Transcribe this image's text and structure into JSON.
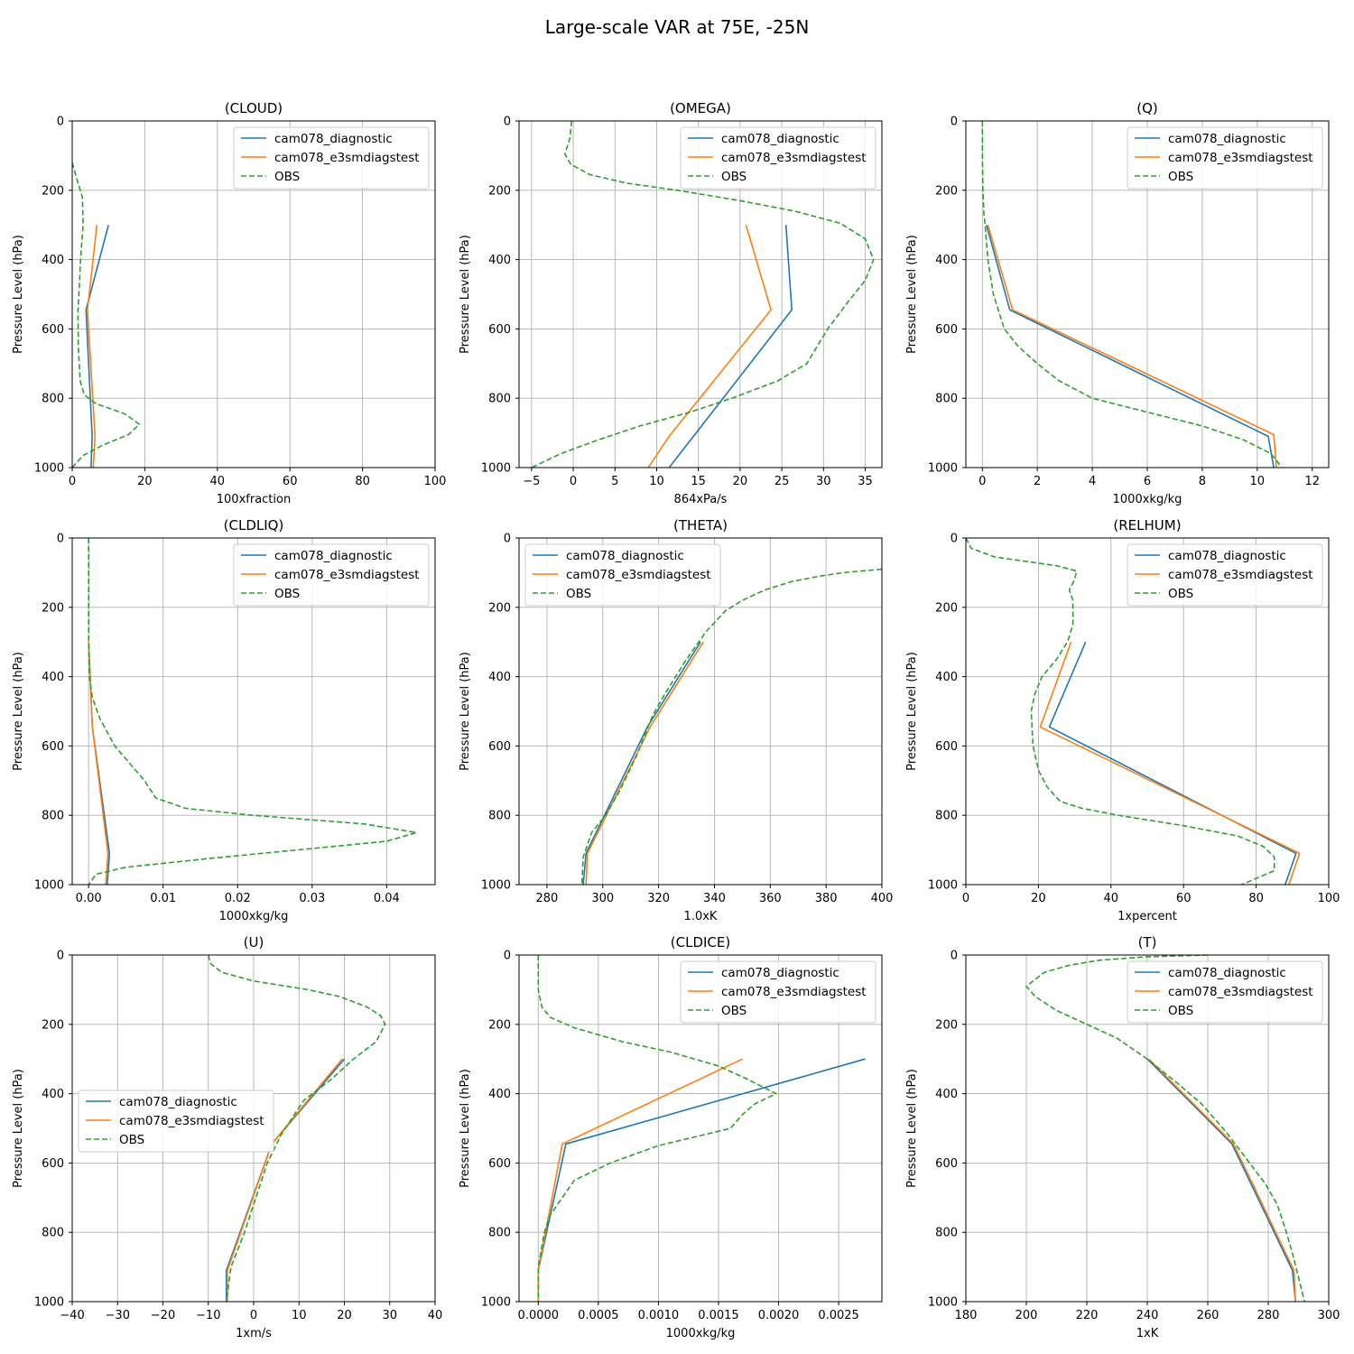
{
  "figure": {
    "title": "Large-scale VAR at 75E, -25N"
  },
  "colors": {
    "cam078_diagnostic": "#1f77b4",
    "cam078_e3smdiagstest": "#ff7f0e",
    "OBS": "#2ca02c"
  },
  "chart_data": [
    {
      "type": "line",
      "title": "(CLOUD)",
      "xlabel": "100xfraction",
      "ylabel": "Pressure Level (hPa)",
      "xlim": [
        0,
        100
      ],
      "ylim": [
        1000,
        0
      ],
      "xticks": [
        0,
        20,
        40,
        60,
        80,
        100
      ],
      "xtick_labels": [
        "0",
        "20",
        "40",
        "60",
        "80",
        "100"
      ],
      "yticks": [
        0,
        200,
        400,
        600,
        800,
        1000
      ],
      "grid": true,
      "legend": "upper right",
      "series": [
        {
          "name": "cam078_diagnostic",
          "style": "solid",
          "x": [
            10,
            3.8,
            5.5,
            5.2
          ],
          "y": [
            300,
            545,
            910,
            1000
          ]
        },
        {
          "name": "cam078_e3smdiagstest",
          "style": "solid",
          "x": [
            6.8,
            4.2,
            6.3,
            5.8
          ],
          "y": [
            300,
            545,
            910,
            1000
          ]
        },
        {
          "name": "OBS",
          "style": "dashed",
          "x": [
            0,
            1.5,
            2.8,
            3.0,
            2.3,
            2.0,
            1.6,
            1.7,
            2.2,
            3.3,
            6.5,
            14.5,
            18.5,
            15.5,
            8.5,
            3.0,
            0
          ],
          "y": [
            120,
            175,
            220,
            300,
            400,
            470,
            550,
            650,
            750,
            790,
            815,
            845,
            875,
            905,
            935,
            965,
            1000
          ]
        }
      ]
    },
    {
      "type": "line",
      "title": "(OMEGA)",
      "xlabel": "864xPa/s",
      "ylabel": "Pressure Level (hPa)",
      "xlim": [
        -6.5,
        37
      ],
      "ylim": [
        1000,
        0
      ],
      "xticks": [
        -5,
        0,
        5,
        10,
        15,
        20,
        25,
        30,
        35
      ],
      "xtick_labels": [
        "−5",
        "0",
        "5",
        "10",
        "15",
        "20",
        "25",
        "30",
        "35"
      ],
      "yticks": [
        0,
        200,
        400,
        600,
        800,
        1000
      ],
      "grid": true,
      "legend": "upper right",
      "series": [
        {
          "name": "cam078_diagnostic",
          "style": "solid",
          "x": [
            25.5,
            26.2,
            11.5
          ],
          "y": [
            300,
            545,
            1000
          ]
        },
        {
          "name": "cam078_e3smdiagstest",
          "style": "solid",
          "x": [
            20.7,
            23.7,
            11.5,
            9.0
          ],
          "y": [
            300,
            545,
            910,
            1000
          ]
        },
        {
          "name": "OBS",
          "style": "dashed",
          "x": [
            -0.2,
            -0.4,
            -1.0,
            -0.3,
            2.0,
            6.5,
            12.5,
            20.0,
            26.5,
            32.0,
            35.0,
            36.0,
            35.0,
            33.0,
            30.5,
            28.0,
            24.5,
            19.0,
            14.0,
            8.0,
            3.0,
            -1.5,
            -5.0
          ],
          "y": [
            0,
            50,
            95,
            125,
            155,
            180,
            200,
            230,
            260,
            295,
            340,
            400,
            460,
            520,
            600,
            700,
            750,
            800,
            840,
            880,
            920,
            960,
            1000
          ]
        }
      ]
    },
    {
      "type": "line",
      "title": "(Q)",
      "xlabel": "1000xkg/kg",
      "ylabel": "Pressure Level (hPa)",
      "xlim": [
        -0.6,
        12.6
      ],
      "ylim": [
        1000,
        0
      ],
      "xticks": [
        0,
        2,
        4,
        6,
        8,
        10,
        12
      ],
      "xtick_labels": [
        "0",
        "2",
        "4",
        "6",
        "8",
        "10",
        "12"
      ],
      "yticks": [
        0,
        200,
        400,
        600,
        800,
        1000
      ],
      "grid": true,
      "legend": "upper right",
      "series": [
        {
          "name": "cam078_diagnostic",
          "style": "solid",
          "x": [
            0.15,
            1.0,
            10.4,
            10.6
          ],
          "y": [
            300,
            545,
            910,
            1000
          ]
        },
        {
          "name": "cam078_e3smdiagstest",
          "style": "solid",
          "x": [
            0.2,
            1.1,
            10.6,
            10.7
          ],
          "y": [
            300,
            545,
            905,
            1000
          ]
        },
        {
          "name": "OBS",
          "style": "dashed",
          "x": [
            0,
            0,
            0.02,
            0.05,
            0.1,
            0.2,
            0.4,
            0.8,
            1.3,
            2.0,
            2.8,
            4.0,
            6.0,
            8.0,
            9.5,
            10.5,
            10.9
          ],
          "y": [
            0,
            100,
            200,
            260,
            300,
            400,
            500,
            600,
            650,
            700,
            750,
            800,
            840,
            880,
            920,
            960,
            1000
          ]
        }
      ]
    },
    {
      "type": "line",
      "title": "(CLDLIQ)",
      "xlabel": "1000xkg/kg",
      "ylabel": "Pressure Level (hPa)",
      "xlim": [
        -0.0022,
        0.0465
      ],
      "ylim": [
        1000,
        0
      ],
      "xticks": [
        0,
        0.01,
        0.02,
        0.03,
        0.04
      ],
      "xtick_labels": [
        "0.00",
        "0.01",
        "0.02",
        "0.03",
        "0.04"
      ],
      "yticks": [
        0,
        200,
        400,
        600,
        800,
        1000
      ],
      "grid": true,
      "legend": "upper right",
      "series": [
        {
          "name": "cam078_diagnostic",
          "style": "solid",
          "x": [
            0,
            0.0005,
            0.0028,
            0.0025
          ],
          "y": [
            300,
            545,
            910,
            1000
          ]
        },
        {
          "name": "cam078_e3smdiagstest",
          "style": "solid",
          "x": [
            0,
            0.0005,
            0.0026,
            0.0023
          ],
          "y": [
            300,
            545,
            910,
            1000
          ]
        },
        {
          "name": "OBS",
          "style": "dashed",
          "x": [
            0,
            0,
            0,
            0.0001,
            0.0005,
            0.0015,
            0.0035,
            0.0055,
            0.0075,
            0.009,
            0.013,
            0.022,
            0.037,
            0.044,
            0.04,
            0.016,
            0.005,
            0.001,
            0
          ],
          "y": [
            0,
            200,
            300,
            400,
            460,
            520,
            600,
            650,
            700,
            750,
            780,
            800,
            825,
            850,
            875,
            925,
            950,
            970,
            1000
          ]
        }
      ]
    },
    {
      "type": "line",
      "title": "(THETA)",
      "xlabel": "1.0xK",
      "ylabel": "Pressure Level (hPa)",
      "xlim": [
        270,
        400
      ],
      "ylim": [
        1000,
        0
      ],
      "xticks": [
        280,
        300,
        320,
        340,
        360,
        380,
        400
      ],
      "xtick_labels": [
        "280",
        "300",
        "320",
        "340",
        "360",
        "380",
        "400"
      ],
      "yticks": [
        0,
        200,
        400,
        600,
        800,
        1000
      ],
      "grid": true,
      "legend": "upper left",
      "series": [
        {
          "name": "cam078_diagnostic",
          "style": "solid",
          "x": [
            335,
            316,
            294,
            293
          ],
          "y": [
            300,
            545,
            910,
            1000
          ]
        },
        {
          "name": "cam078_e3smdiagstest",
          "style": "solid",
          "x": [
            336,
            317,
            294.5,
            294
          ],
          "y": [
            300,
            545,
            910,
            1000
          ]
        },
        {
          "name": "OBS",
          "style": "dashed",
          "x": [
            400,
            386,
            378,
            368,
            358,
            350,
            344,
            337,
            330,
            323,
            318,
            312,
            306,
            301,
            296,
            293,
            292.5
          ],
          "y": [
            90,
            100,
            110,
            125,
            150,
            180,
            210,
            270,
            350,
            440,
            510,
            630,
            730,
            800,
            850,
            920,
            1000
          ]
        }
      ]
    },
    {
      "type": "line",
      "title": "(RELHUM)",
      "xlabel": "1xpercent",
      "ylabel": "Pressure Level (hPa)",
      "xlim": [
        0,
        100
      ],
      "ylim": [
        1000,
        0
      ],
      "xticks": [
        0,
        20,
        40,
        60,
        80,
        100
      ],
      "xtick_labels": [
        "0",
        "20",
        "40",
        "60",
        "80",
        "100"
      ],
      "yticks": [
        0,
        200,
        400,
        600,
        800,
        1000
      ],
      "grid": true,
      "legend": "upper right",
      "series": [
        {
          "name": "cam078_diagnostic",
          "style": "solid",
          "x": [
            33,
            23,
            91,
            88
          ],
          "y": [
            300,
            545,
            910,
            1000
          ]
        },
        {
          "name": "cam078_e3smdiagstest",
          "style": "solid",
          "x": [
            29,
            20.5,
            92,
            89
          ],
          "y": [
            300,
            545,
            910,
            1000
          ]
        },
        {
          "name": "OBS",
          "style": "dashed",
          "x": [
            0,
            1.5,
            8,
            25,
            30.5,
            30,
            28.5,
            29.5,
            29.5,
            28,
            25,
            21,
            19,
            18,
            18.5,
            20,
            22.5,
            26,
            32,
            42,
            60,
            75,
            82,
            85,
            85,
            76
          ],
          "y": [
            0,
            30,
            55,
            80,
            95,
            120,
            150,
            180,
            250,
            300,
            350,
            400,
            450,
            500,
            600,
            670,
            720,
            760,
            780,
            800,
            830,
            860,
            890,
            920,
            960,
            1000
          ]
        }
      ]
    },
    {
      "type": "line",
      "title": "(U)",
      "xlabel": "1xm/s",
      "ylabel": "Pressure Level (hPa)",
      "xlim": [
        -40,
        40
      ],
      "ylim": [
        1000,
        0
      ],
      "xticks": [
        -40,
        -30,
        -20,
        -10,
        0,
        10,
        20,
        30,
        40
      ],
      "xtick_labels": [
        "−40",
        "−30",
        "−20",
        "−10",
        "0",
        "10",
        "20",
        "30",
        "40"
      ],
      "yticks": [
        0,
        200,
        400,
        600,
        800,
        1000
      ],
      "grid": true,
      "legend": "center left",
      "series": [
        {
          "name": "cam078_diagnostic",
          "style": "solid",
          "x": [
            20,
            4,
            -6,
            -6
          ],
          "y": [
            300,
            545,
            910,
            1000
          ]
        },
        {
          "name": "cam078_e3smdiagstest",
          "style": "solid",
          "x": [
            19.5,
            4,
            -5.8,
            -5.8
          ],
          "y": [
            300,
            545,
            910,
            1000
          ]
        },
        {
          "name": "OBS",
          "style": "dashed",
          "x": [
            -10,
            -9.5,
            -7,
            0,
            12,
            19,
            25,
            28,
            29,
            27,
            22,
            17,
            11,
            8,
            6,
            3,
            0.5,
            -2,
            -3.5,
            -5,
            -6
          ],
          "y": [
            0,
            25,
            50,
            75,
            100,
            120,
            150,
            175,
            200,
            250,
            300,
            360,
            420,
            480,
            520,
            600,
            700,
            800,
            850,
            900,
            1000
          ]
        }
      ]
    },
    {
      "type": "line",
      "title": "(CLDICE)",
      "xlabel": "1000xkg/kg",
      "ylabel": "Pressure Level (hPa)",
      "xlim": [
        -0.00016,
        0.00286
      ],
      "ylim": [
        1000,
        0
      ],
      "xticks": [
        0,
        0.0005,
        0.001,
        0.0015,
        0.002,
        0.0025
      ],
      "xtick_labels": [
        "0.0000",
        "0.0005",
        "0.0010",
        "0.0015",
        "0.0020",
        "0.0025"
      ],
      "yticks": [
        0,
        200,
        400,
        600,
        800,
        1000
      ],
      "grid": true,
      "legend": "upper right",
      "series": [
        {
          "name": "cam078_diagnostic",
          "style": "solid",
          "x": [
            0.00272,
            0.00023,
            0.0,
            0.0
          ],
          "y": [
            300,
            545,
            910,
            1000
          ]
        },
        {
          "name": "cam078_e3smdiagstest",
          "style": "solid",
          "x": [
            0.0017,
            0.0002,
            0.0,
            0.0
          ],
          "y": [
            300,
            545,
            910,
            1000
          ]
        },
        {
          "name": "OBS",
          "style": "dashed",
          "x": [
            0.0,
            0.0,
            3e-05,
            0.0001,
            0.0003,
            0.0007,
            0.0011,
            0.0015,
            0.00175,
            0.00198,
            0.0018,
            0.0017,
            0.0016,
            0.001,
            0.0006,
            0.0003,
            0.0002,
            0.0001,
            5e-05,
            0.0,
            0.0
          ],
          "y": [
            0,
            100,
            150,
            180,
            210,
            250,
            280,
            320,
            360,
            400,
            430,
            460,
            500,
            550,
            600,
            650,
            700,
            750,
            800,
            900,
            1000
          ]
        }
      ]
    },
    {
      "type": "line",
      "title": "(T)",
      "xlabel": "1xK",
      "ylabel": "Pressure Level (hPa)",
      "xlim": [
        180,
        300
      ],
      "ylim": [
        1000,
        0
      ],
      "xticks": [
        180,
        200,
        220,
        240,
        260,
        280,
        300
      ],
      "xtick_labels": [
        "180",
        "200",
        "220",
        "240",
        "260",
        "280",
        "300"
      ],
      "yticks": [
        0,
        200,
        400,
        600,
        800,
        1000
      ],
      "grid": true,
      "legend": "upper right",
      "series": [
        {
          "name": "cam078_diagnostic",
          "style": "solid",
          "x": [
            240,
            268,
            288,
            289
          ],
          "y": [
            300,
            545,
            910,
            1000
          ]
        },
        {
          "name": "cam078_e3smdiagstest",
          "style": "solid",
          "x": [
            240.5,
            268.5,
            288.5,
            289
          ],
          "y": [
            300,
            545,
            910,
            1000
          ]
        },
        {
          "name": "OBS",
          "style": "dashed",
          "x": [
            260,
            240,
            224,
            214,
            206,
            200,
            203,
            210,
            220,
            230,
            240,
            250,
            258,
            266,
            273,
            279,
            283,
            286,
            288,
            290,
            292
          ],
          "y": [
            0,
            5,
            15,
            30,
            50,
            90,
            120,
            160,
            200,
            240,
            300,
            370,
            430,
            510,
            590,
            660,
            720,
            800,
            860,
            930,
            1000
          ]
        }
      ]
    }
  ]
}
